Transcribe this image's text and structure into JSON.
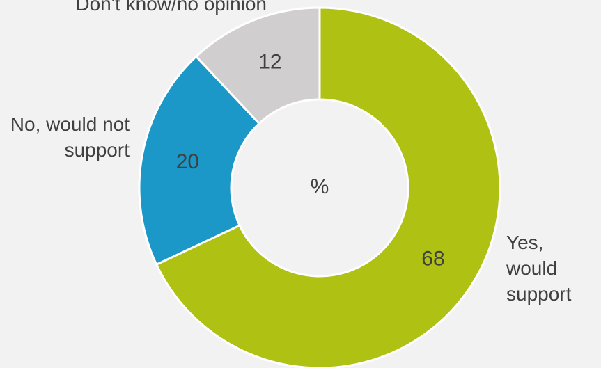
{
  "chart_data": {
    "type": "donut",
    "center_label": "%",
    "categories": [
      "Yes, would support",
      "No, would not support",
      "Don't know/no opinion"
    ],
    "values": [
      68,
      20,
      12
    ],
    "colors": [
      "#afc213",
      "#1b98c7",
      "#d0cece"
    ]
  }
}
